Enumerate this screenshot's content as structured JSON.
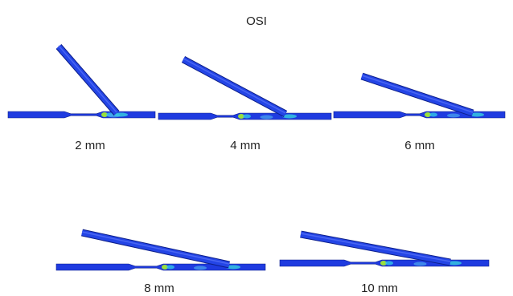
{
  "title": "OSI",
  "panels": [
    {
      "label": "2 mm"
    },
    {
      "label": "4 mm"
    },
    {
      "label": "6 mm"
    },
    {
      "label": "8 mm"
    },
    {
      "label": "10 mm"
    }
  ]
}
